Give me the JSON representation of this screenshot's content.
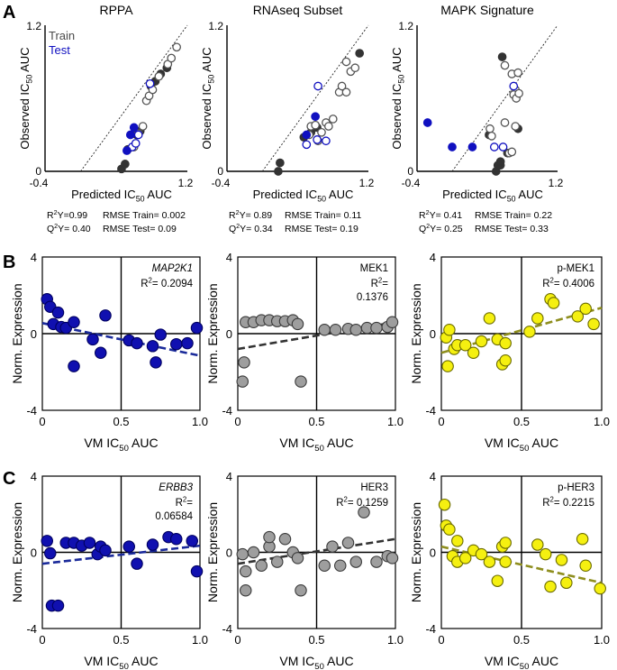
{
  "panel_labels": [
    "A",
    "B",
    "C"
  ],
  "row_a": {
    "titles": [
      "RPPA",
      "RNAseq  Subset",
      "MAPK Signature"
    ],
    "ylabel_main": "Observed IC",
    "ylabel_sub": "50",
    "ylabel_tail": "  AUC",
    "xlabel_main": "Predicted IC",
    "xlabel_sub": "50",
    "xlabel_tail": "  AUC",
    "legend_train": "Train",
    "legend_test": "Test",
    "stats": [
      {
        "r2": "R²Y=0.99",
        "rmse_train": "RMSE Train= 0.002",
        "q2": "Q²Y= 0.40",
        "rmse_test": "RMSE Test= 0.09"
      },
      {
        "r2": "R²Y= 0.89",
        "rmse_train": "RMSE Train= 0.11",
        "q2": "Q²Y= 0.34",
        "rmse_test": "RMSE Test= 0.19"
      },
      {
        "r2": "R²Y= 0.41",
        "rmse_train": "RMSE Train= 0.22",
        "q2": "Q²Y= 0.25",
        "rmse_test": "RMSE Test= 0.33"
      }
    ]
  },
  "row_bc": {
    "ylabel": "Norm. Expression",
    "xlabel_main": "VM IC",
    "xlabel_sub": "50",
    "xlabel_tail": "  AUC"
  },
  "chart_data": [
    {
      "type": "scatter",
      "id": "A1",
      "title": "RPPA",
      "xlim": [
        -0.4,
        1.2
      ],
      "ylim": [
        0,
        1.2
      ],
      "x_ticks": [
        "-0.4",
        "1.2"
      ],
      "y_ticks": [
        "0",
        "1.2"
      ],
      "identity_line": true,
      "series": [
        {
          "name": "Train measured",
          "style": "filled-dark",
          "points": [
            [
              0.46,
              0.02
            ],
            [
              0.5,
              0.06
            ],
            [
              0.53,
              0.18
            ],
            [
              0.63,
              0.3
            ],
            [
              0.67,
              0.33
            ],
            [
              0.79,
              0.7
            ],
            [
              0.84,
              0.74
            ],
            [
              0.9,
              0.8
            ],
            [
              0.97,
              0.85
            ]
          ]
        },
        {
          "name": "Train",
          "style": "open-dark",
          "points": [
            [
              0.6,
              0.2
            ],
            [
              0.65,
              0.31
            ],
            [
              0.7,
              0.37
            ],
            [
              0.74,
              0.58
            ],
            [
              0.77,
              0.62
            ],
            [
              0.81,
              0.67
            ],
            [
              0.88,
              0.78
            ],
            [
              0.98,
              0.88
            ],
            [
              1.02,
              0.93
            ],
            [
              1.08,
              1.02
            ]
          ]
        },
        {
          "name": "Test",
          "style": "open-blue",
          "points": [
            [
              0.58,
              0.2
            ],
            [
              0.62,
              0.23
            ],
            [
              0.65,
              0.3
            ],
            [
              0.78,
              0.72
            ]
          ]
        },
        {
          "name": "Test measured",
          "style": "filled-blue",
          "points": [
            [
              0.52,
              0.17
            ],
            [
              0.56,
              0.3
            ],
            [
              0.6,
              0.36
            ]
          ]
        }
      ]
    },
    {
      "type": "scatter",
      "id": "A2",
      "title": "RNAseq  Subset",
      "xlim": [
        -0.4,
        1.2
      ],
      "ylim": [
        0,
        1.2
      ],
      "x_ticks": [
        "-0.4",
        "1.2"
      ],
      "y_ticks": [
        "0",
        "1.2"
      ],
      "identity_line": true,
      "series": [
        {
          "name": "Train measured",
          "style": "filled-dark",
          "points": [
            [
              0.18,
              0.0
            ],
            [
              0.2,
              0.07
            ],
            [
              0.47,
              0.28
            ],
            [
              0.55,
              0.32
            ],
            [
              0.62,
              0.36
            ],
            [
              1.1,
              0.97
            ]
          ]
        },
        {
          "name": "Train",
          "style": "open-dark",
          "points": [
            [
              0.53,
              0.3
            ],
            [
              0.55,
              0.37
            ],
            [
              0.6,
              0.38
            ],
            [
              0.63,
              0.25
            ],
            [
              0.67,
              0.32
            ],
            [
              0.72,
              0.4
            ],
            [
              0.75,
              0.37
            ],
            [
              0.8,
              0.43
            ],
            [
              0.87,
              0.65
            ],
            [
              0.9,
              0.7
            ],
            [
              0.95,
              0.65
            ],
            [
              1.0,
              0.82
            ],
            [
              0.95,
              0.9
            ],
            [
              1.05,
              0.85
            ]
          ]
        },
        {
          "name": "Test",
          "style": "open-blue",
          "points": [
            [
              0.63,
              0.7
            ],
            [
              0.5,
              0.22
            ],
            [
              0.62,
              0.26
            ],
            [
              0.72,
              0.25
            ]
          ]
        },
        {
          "name": "Test measured",
          "style": "filled-blue",
          "points": [
            [
              0.5,
              0.3
            ],
            [
              0.6,
              0.45
            ]
          ]
        }
      ]
    },
    {
      "type": "scatter",
      "id": "A3",
      "title": "MAPK Signature",
      "xlim": [
        -0.4,
        1.2
      ],
      "ylim": [
        0,
        1.2
      ],
      "x_ticks": [
        "-0.4",
        "1.2"
      ],
      "y_ticks": [
        "0",
        "1.2"
      ],
      "identity_line": true,
      "series": [
        {
          "name": "Train measured",
          "style": "filled-dark",
          "points": [
            [
              0.57,
              0.94
            ],
            [
              0.5,
              0.0
            ],
            [
              0.52,
              0.05
            ],
            [
              0.55,
              0.05
            ],
            [
              0.55,
              0.08
            ],
            [
              0.63,
              0.15
            ],
            [
              0.75,
              0.35
            ],
            [
              0.42,
              0.3
            ]
          ]
        },
        {
          "name": "Train",
          "style": "open-dark",
          "points": [
            [
              0.43,
              0.35
            ],
            [
              0.45,
              0.29
            ],
            [
              0.6,
              0.87
            ],
            [
              0.68,
              0.8
            ],
            [
              0.75,
              0.81
            ],
            [
              0.72,
              0.67
            ],
            [
              0.7,
              0.63
            ],
            [
              0.73,
              0.6
            ],
            [
              0.76,
              0.64
            ],
            [
              0.6,
              0.4
            ],
            [
              0.72,
              0.37
            ],
            [
              0.65,
              0.15
            ],
            [
              0.68,
              0.16
            ]
          ]
        },
        {
          "name": "Test",
          "style": "open-blue",
          "points": [
            [
              0.48,
              0.2
            ],
            [
              0.58,
              0.2
            ],
            [
              0.7,
              0.7
            ]
          ]
        },
        {
          "name": "Test measured",
          "style": "filled-blue",
          "points": [
            [
              -0.28,
              0.4
            ],
            [
              0.0,
              0.2
            ],
            [
              0.23,
              0.2
            ]
          ]
        }
      ]
    },
    {
      "type": "scatter",
      "id": "B1",
      "label": "MAP2K1",
      "label_italic": true,
      "r2": "R²= 0.2094",
      "xlim": [
        0,
        1
      ],
      "ylim": [
        -4,
        4
      ],
      "x_ticks": [
        "0",
        "0.5",
        "1.0"
      ],
      "y_ticks": [
        "4",
        "0",
        "-4"
      ],
      "color": "#1010b0",
      "edge": "#000060",
      "trend_color": "#1a2a9a",
      "trend": {
        "x": [
          0.0,
          1.0
        ],
        "y": [
          0.55,
          -1.15
        ]
      },
      "points": [
        [
          0.03,
          1.8
        ],
        [
          0.05,
          1.4
        ],
        [
          0.07,
          0.5
        ],
        [
          0.1,
          1.1
        ],
        [
          0.12,
          0.35
        ],
        [
          0.15,
          0.3
        ],
        [
          0.2,
          0.6
        ],
        [
          0.2,
          -1.7
        ],
        [
          0.32,
          -0.3
        ],
        [
          0.37,
          -1.0
        ],
        [
          0.4,
          0.95
        ],
        [
          0.55,
          -0.35
        ],
        [
          0.6,
          -0.5
        ],
        [
          0.7,
          -0.65
        ],
        [
          0.72,
          -1.5
        ],
        [
          0.75,
          -0.05
        ],
        [
          0.85,
          -0.55
        ],
        [
          0.92,
          -0.5
        ],
        [
          0.98,
          0.3
        ]
      ]
    },
    {
      "type": "scatter",
      "id": "B2",
      "label": "MEK1",
      "label_italic": false,
      "r2": "R²=\n0.1376",
      "xlim": [
        0,
        1
      ],
      "ylim": [
        -4,
        4
      ],
      "x_ticks": [
        "0",
        "0.5",
        "1.0"
      ],
      "y_ticks": [
        "4",
        "0",
        "-4"
      ],
      "color": "#9e9e9e",
      "edge": "#3a3a3a",
      "trend_color": "#333333",
      "trend": {
        "x": [
          0.0,
          1.0
        ],
        "y": [
          -0.8,
          0.6
        ]
      },
      "points": [
        [
          0.03,
          -2.5
        ],
        [
          0.04,
          -1.5
        ],
        [
          0.05,
          0.6
        ],
        [
          0.1,
          0.6
        ],
        [
          0.15,
          0.7
        ],
        [
          0.2,
          0.7
        ],
        [
          0.25,
          0.65
        ],
        [
          0.3,
          0.65
        ],
        [
          0.35,
          0.7
        ],
        [
          0.38,
          0.5
        ],
        [
          0.4,
          -2.5
        ],
        [
          0.55,
          0.2
        ],
        [
          0.62,
          0.2
        ],
        [
          0.7,
          0.25
        ],
        [
          0.75,
          0.2
        ],
        [
          0.82,
          0.3
        ],
        [
          0.88,
          0.3
        ],
        [
          0.95,
          0.35
        ],
        [
          0.98,
          0.6
        ]
      ]
    },
    {
      "type": "scatter",
      "id": "B3",
      "label": "p-MEK1",
      "label_italic": false,
      "r2": "R²= 0.4006",
      "xlim": [
        0,
        1
      ],
      "ylim": [
        -4,
        4
      ],
      "x_ticks": [
        "0",
        "0.5",
        "1.0"
      ],
      "y_ticks": [
        "4",
        "0",
        "-4"
      ],
      "color": "#f5f010",
      "edge": "#6b6b00",
      "trend_color": "#8e8e1e",
      "trend": {
        "x": [
          0.0,
          1.0
        ],
        "y": [
          -1.0,
          1.35
        ]
      },
      "points": [
        [
          0.03,
          -0.2
        ],
        [
          0.04,
          -1.7
        ],
        [
          0.05,
          0.2
        ],
        [
          0.08,
          -0.8
        ],
        [
          0.1,
          -0.6
        ],
        [
          0.15,
          -0.6
        ],
        [
          0.2,
          -1.0
        ],
        [
          0.25,
          -0.4
        ],
        [
          0.3,
          0.8
        ],
        [
          0.35,
          -0.3
        ],
        [
          0.38,
          -1.6
        ],
        [
          0.4,
          -0.5
        ],
        [
          0.4,
          -1.4
        ],
        [
          0.55,
          0.1
        ],
        [
          0.6,
          0.8
        ],
        [
          0.68,
          1.8
        ],
        [
          0.7,
          1.6
        ],
        [
          0.85,
          0.9
        ],
        [
          0.9,
          1.3
        ],
        [
          0.95,
          0.5
        ]
      ]
    },
    {
      "type": "scatter",
      "id": "C1",
      "label": "ERBB3",
      "label_italic": true,
      "r2": "R²=\n0.06584",
      "xlim": [
        0,
        1
      ],
      "ylim": [
        -4,
        4
      ],
      "x_ticks": [
        "0",
        "0.5",
        "1.0"
      ],
      "y_ticks": [
        "4",
        "0",
        "-4"
      ],
      "color": "#1010b0",
      "edge": "#000060",
      "trend_color": "#1a2a9a",
      "trend": {
        "x": [
          0.0,
          1.0
        ],
        "y": [
          -0.6,
          0.35
        ]
      },
      "points": [
        [
          0.03,
          0.6
        ],
        [
          0.05,
          -0.05
        ],
        [
          0.06,
          -2.8
        ],
        [
          0.1,
          -2.8
        ],
        [
          0.15,
          0.5
        ],
        [
          0.2,
          0.5
        ],
        [
          0.25,
          0.35
        ],
        [
          0.3,
          0.5
        ],
        [
          0.35,
          -0.1
        ],
        [
          0.37,
          0.3
        ],
        [
          0.4,
          0.1
        ],
        [
          0.55,
          0.3
        ],
        [
          0.6,
          -0.6
        ],
        [
          0.7,
          0.4
        ],
        [
          0.8,
          0.8
        ],
        [
          0.85,
          0.7
        ],
        [
          0.95,
          0.6
        ],
        [
          0.98,
          -1.0
        ]
      ]
    },
    {
      "type": "scatter",
      "id": "C2",
      "label": "HER3",
      "label_italic": false,
      "r2": "R²= 0.1259",
      "xlim": [
        0,
        1
      ],
      "ylim": [
        -4,
        4
      ],
      "x_ticks": [
        "0",
        "0.5",
        "1.0"
      ],
      "y_ticks": [
        "4",
        "0",
        "-4"
      ],
      "color": "#9e9e9e",
      "edge": "#3a3a3a",
      "trend_color": "#333333",
      "trend": {
        "x": [
          0.0,
          1.0
        ],
        "y": [
          -0.6,
          0.7
        ]
      },
      "points": [
        [
          0.03,
          -0.1
        ],
        [
          0.05,
          -1.0
        ],
        [
          0.05,
          -2.0
        ],
        [
          0.1,
          0.0
        ],
        [
          0.15,
          -0.7
        ],
        [
          0.2,
          0.3
        ],
        [
          0.2,
          0.8
        ],
        [
          0.25,
          -0.5
        ],
        [
          0.3,
          0.7
        ],
        [
          0.35,
          0.0
        ],
        [
          0.38,
          -0.3
        ],
        [
          0.4,
          -2.0
        ],
        [
          0.55,
          -0.7
        ],
        [
          0.6,
          0.3
        ],
        [
          0.65,
          -0.7
        ],
        [
          0.7,
          0.5
        ],
        [
          0.75,
          -0.5
        ],
        [
          0.8,
          2.1
        ],
        [
          0.88,
          -0.5
        ],
        [
          0.95,
          -0.2
        ],
        [
          0.98,
          -0.3
        ]
      ]
    },
    {
      "type": "scatter",
      "id": "C3",
      "label": "p-HER3",
      "label_italic": false,
      "r2": "R²= 0.2215",
      "xlim": [
        0,
        1
      ],
      "ylim": [
        -4,
        4
      ],
      "x_ticks": [
        "0",
        "0.5",
        "1.0"
      ],
      "y_ticks": [
        "4",
        "0",
        "-4"
      ],
      "color": "#f5f010",
      "edge": "#6b6b00",
      "trend_color": "#8e8e1e",
      "trend": {
        "x": [
          0.0,
          1.0
        ],
        "y": [
          0.3,
          -1.6
        ]
      },
      "points": [
        [
          0.02,
          2.5
        ],
        [
          0.03,
          1.4
        ],
        [
          0.05,
          1.2
        ],
        [
          0.07,
          -0.2
        ],
        [
          0.1,
          -0.5
        ],
        [
          0.1,
          0.6
        ],
        [
          0.15,
          -0.3
        ],
        [
          0.2,
          0.1
        ],
        [
          0.25,
          -0.1
        ],
        [
          0.3,
          -0.5
        ],
        [
          0.35,
          -1.5
        ],
        [
          0.38,
          0.3
        ],
        [
          0.4,
          0.5
        ],
        [
          0.4,
          -0.5
        ],
        [
          0.6,
          0.4
        ],
        [
          0.65,
          -0.1
        ],
        [
          0.68,
          -1.8
        ],
        [
          0.75,
          -0.4
        ],
        [
          0.78,
          -1.6
        ],
        [
          0.88,
          0.7
        ],
        [
          0.9,
          -0.7
        ],
        [
          0.99,
          -1.9
        ]
      ]
    }
  ]
}
